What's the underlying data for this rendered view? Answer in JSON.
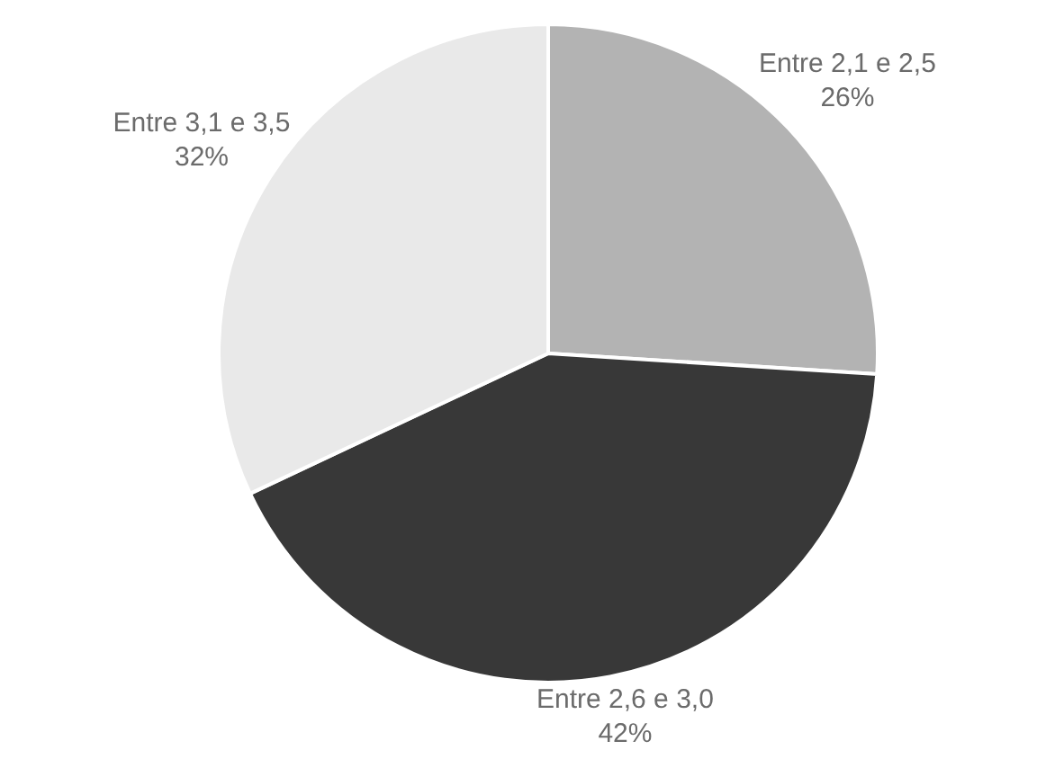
{
  "chart_data": {
    "type": "pie",
    "categories": [
      "Entre 2,1 e 2,5",
      "Entre 2,6 e 3,0",
      "Entre 3,1 e 3,5"
    ],
    "values": [
      26,
      42,
      32
    ],
    "colors": [
      "#b3b3b3",
      "#383838",
      "#e9e9e9"
    ],
    "value_labels": [
      "26%",
      "42%",
      "32%"
    ]
  }
}
